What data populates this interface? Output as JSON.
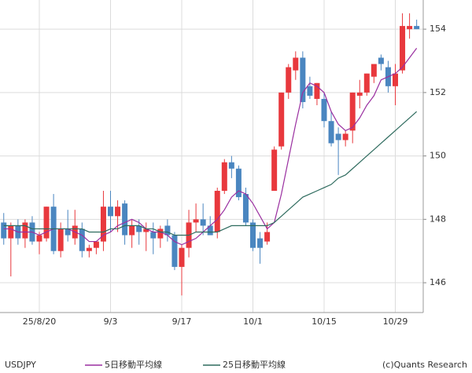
{
  "chart_data": {
    "type": "candlestick",
    "symbol": "USDJPY",
    "credit": "(c)Quants Research",
    "categories": [
      null,
      null,
      null,
      null,
      null,
      "25/8/20",
      null,
      null,
      null,
      null,
      null,
      null,
      null,
      null,
      null,
      "9/3",
      null,
      null,
      null,
      null,
      null,
      null,
      null,
      null,
      null,
      "9/17",
      null,
      null,
      null,
      null,
      null,
      null,
      null,
      null,
      null,
      "10/1",
      null,
      null,
      null,
      null,
      null,
      null,
      null,
      null,
      null,
      "10/15",
      null,
      null,
      null,
      null,
      null,
      null,
      null,
      null,
      null,
      "10/29",
      null,
      null,
      null
    ],
    "open": [
      147.9,
      147.4,
      147.8,
      147.4,
      147.9,
      147.3,
      147.4,
      148.4,
      147.0,
      147.7,
      147.4,
      147.7,
      147.0,
      147.1,
      147.3,
      148.4,
      148.1,
      148.5,
      147.5,
      147.8,
      147.6,
      147.6,
      147.4,
      147.8,
      147.5,
      146.5,
      147.1,
      147.9,
      148.0,
      147.8,
      147.6,
      148.9,
      149.8,
      149.6,
      148.8,
      147.9,
      147.4,
      147.3,
      148.9,
      150.3,
      152.0,
      152.7,
      153.1,
      152.2,
      151.8,
      151.8,
      151.1,
      150.7,
      150.5,
      150.8,
      151.9,
      152.0,
      152.5,
      153.1,
      152.8,
      152.2,
      152.7,
      154.0,
      154.1
    ],
    "high": [
      148.2,
      147.9,
      148.0,
      148.0,
      148.1,
      147.6,
      148.4,
      148.8,
      147.9,
      148.3,
      148.3,
      147.9,
      147.2,
      147.3,
      148.9,
      148.9,
      148.6,
      148.6,
      148.0,
      148.0,
      147.9,
      147.9,
      147.8,
      148.0,
      147.6,
      147.2,
      148.3,
      148.5,
      148.5,
      148.1,
      149.0,
      149.9,
      150.0,
      149.7,
      149.0,
      148.0,
      147.6,
      147.9,
      150.3,
      152.0,
      152.9,
      153.3,
      153.3,
      152.5,
      152.3,
      152.0,
      151.4,
      150.9,
      150.8,
      152.0,
      152.4,
      152.6,
      152.9,
      153.2,
      153.0,
      152.9,
      154.5,
      154.5,
      154.3
    ],
    "low": [
      147.2,
      146.2,
      147.2,
      147.1,
      147.2,
      146.9,
      147.3,
      146.9,
      146.8,
      147.3,
      147.2,
      146.8,
      146.8,
      146.9,
      147.0,
      147.6,
      147.6,
      147.2,
      147.1,
      147.2,
      147.0,
      146.9,
      147.1,
      147.3,
      146.4,
      145.6,
      146.8,
      147.6,
      147.5,
      147.5,
      147.4,
      148.8,
      149.3,
      148.6,
      147.8,
      147.0,
      146.6,
      147.2,
      148.9,
      150.2,
      151.8,
      152.4,
      151.5,
      151.8,
      151.6,
      150.9,
      150.3,
      149.4,
      150.3,
      150.4,
      151.5,
      151.9,
      152.3,
      152.7,
      152.0,
      151.6,
      152.6,
      153.7,
      154.0
    ],
    "close": [
      147.4,
      147.8,
      147.4,
      147.9,
      147.3,
      147.5,
      148.4,
      147.0,
      147.7,
      147.5,
      147.8,
      147.0,
      147.1,
      147.3,
      148.4,
      148.1,
      148.4,
      147.5,
      147.8,
      147.6,
      147.7,
      147.4,
      147.7,
      147.5,
      146.5,
      147.1,
      147.9,
      148.0,
      147.8,
      147.5,
      148.9,
      149.8,
      149.6,
      148.7,
      147.9,
      147.1,
      147.1,
      147.6,
      150.2,
      152.0,
      152.8,
      153.1,
      151.7,
      151.9,
      152.3,
      151.1,
      150.4,
      150.5,
      150.7,
      152.0,
      152.0,
      152.6,
      152.9,
      152.9,
      152.2,
      152.6,
      154.1,
      154.1,
      154.0
    ],
    "up_color": "#e8383d",
    "down_color": "#4a86c0",
    "series": [
      {
        "name": "5日移動平均線",
        "color": "#9a2fa0",
        "values": [
          147.7,
          147.7,
          147.6,
          147.6,
          147.6,
          147.5,
          147.6,
          147.7,
          147.7,
          147.7,
          147.6,
          147.5,
          147.3,
          147.3,
          147.5,
          147.6,
          147.8,
          147.9,
          148.0,
          147.9,
          147.7,
          147.6,
          147.6,
          147.5,
          147.3,
          147.2,
          147.3,
          147.4,
          147.6,
          147.8,
          148.0,
          148.3,
          148.7,
          148.9,
          148.8,
          148.5,
          148.1,
          147.7,
          147.9,
          148.8,
          149.9,
          151.0,
          152.0,
          152.3,
          152.2,
          152.0,
          151.4,
          151.0,
          150.8,
          150.9,
          151.2,
          151.6,
          151.9,
          152.4,
          152.5,
          152.6,
          152.8,
          153.1,
          153.4
        ]
      },
      {
        "name": "25日移動平均線",
        "color": "#2e6b5e",
        "values": [
          147.8,
          147.8,
          147.8,
          147.8,
          147.7,
          147.7,
          147.7,
          147.7,
          147.7,
          147.7,
          147.7,
          147.7,
          147.6,
          147.6,
          147.6,
          147.7,
          147.7,
          147.8,
          147.8,
          147.8,
          147.7,
          147.7,
          147.6,
          147.6,
          147.5,
          147.5,
          147.5,
          147.6,
          147.6,
          147.6,
          147.6,
          147.7,
          147.8,
          147.8,
          147.8,
          147.8,
          147.8,
          147.8,
          147.9,
          148.1,
          148.3,
          148.5,
          148.7,
          148.8,
          148.9,
          149.0,
          149.1,
          149.3,
          149.4,
          149.6,
          149.8,
          150.0,
          150.2,
          150.4,
          150.6,
          150.8,
          151.0,
          151.2,
          151.4
        ]
      }
    ],
    "ylim": [
      145.06,
      154.92
    ],
    "yticks": [
      146,
      148,
      150,
      152,
      154
    ],
    "grid": true
  }
}
